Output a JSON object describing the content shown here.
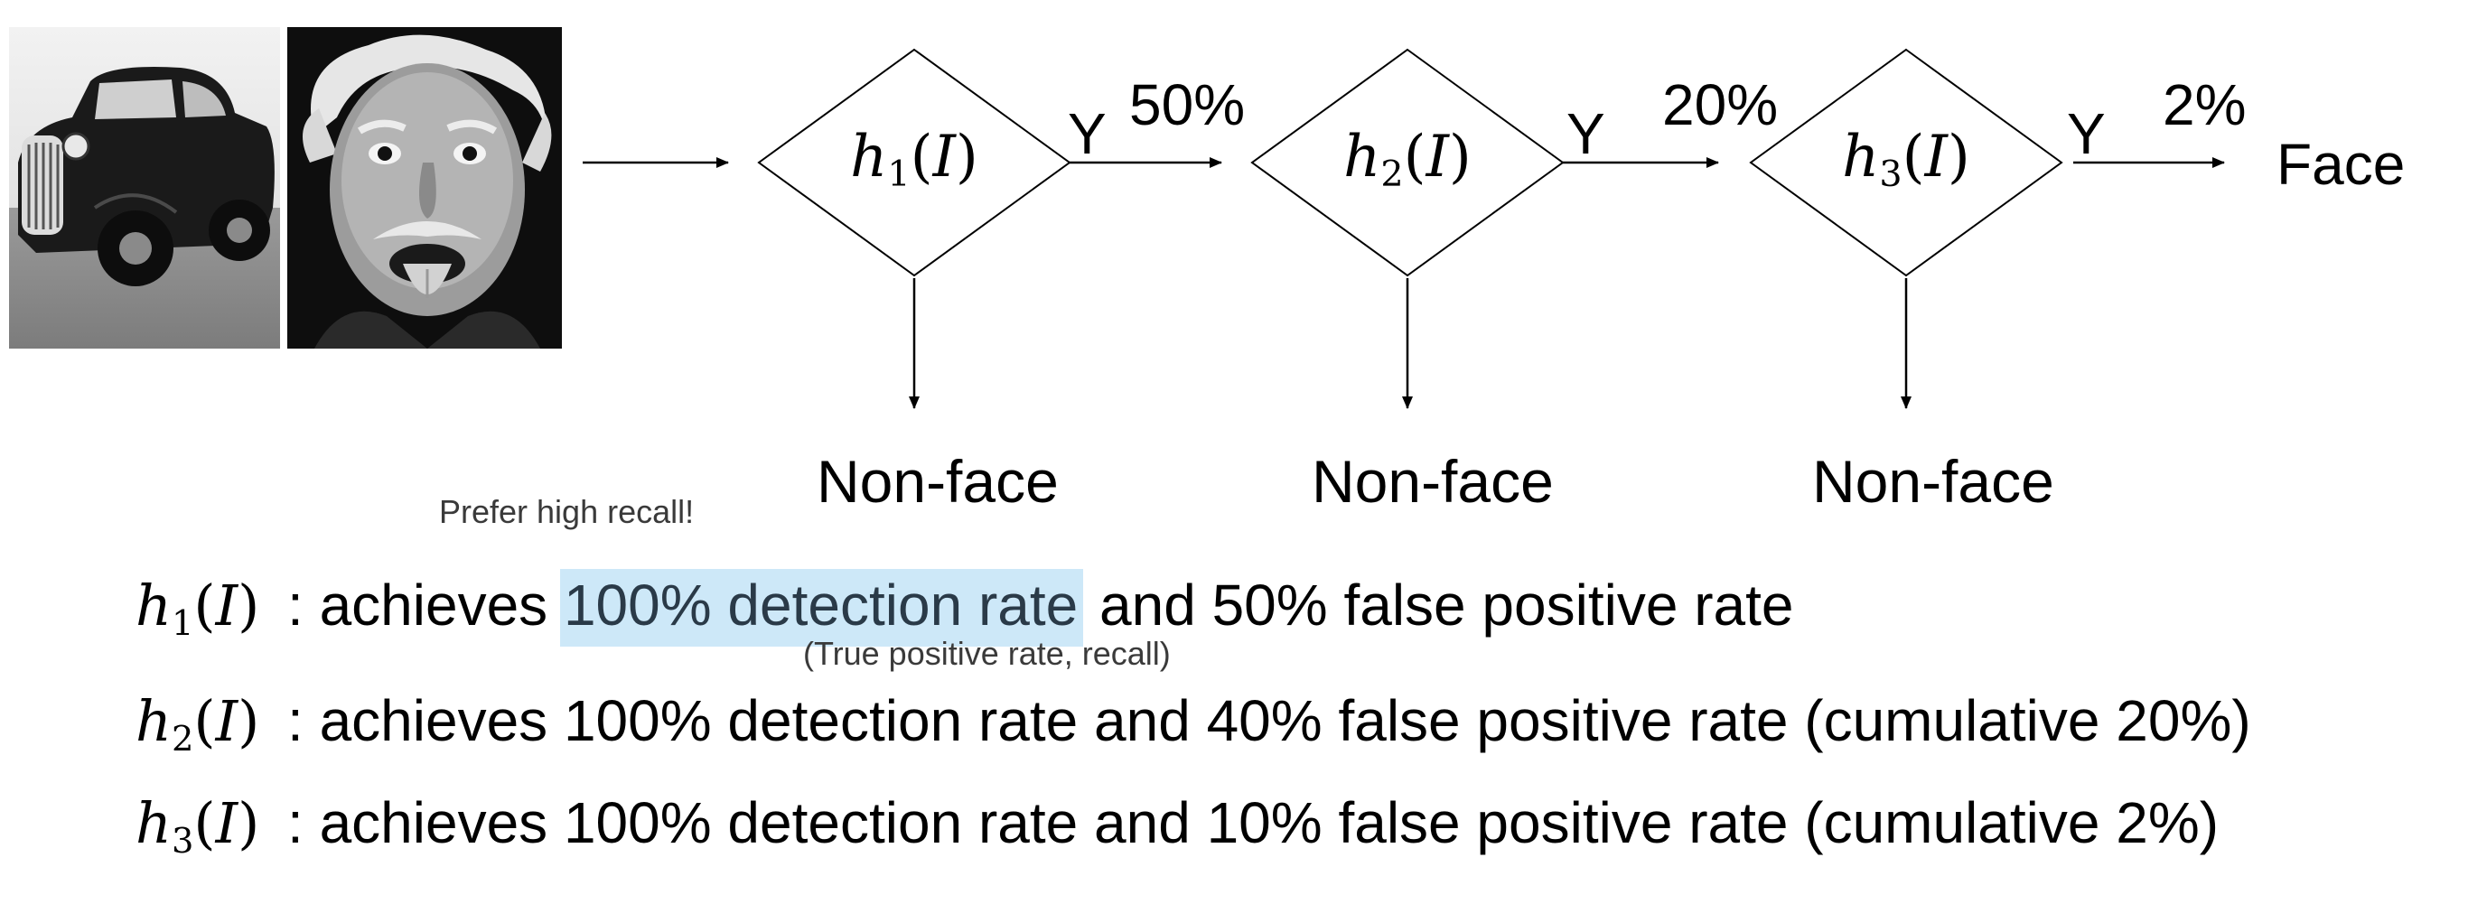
{
  "images": {
    "left": {
      "icon": "vintage-car-photo"
    },
    "right": {
      "icon": "einstein-tongue-photo"
    }
  },
  "stages": [
    {
      "classifier": {
        "fn": "h",
        "sub": "1",
        "arg": "I"
      },
      "yes": "Y",
      "pass_rate": "50%",
      "reject": "Non-face"
    },
    {
      "classifier": {
        "fn": "h",
        "sub": "2",
        "arg": "I"
      },
      "yes": "Y",
      "pass_rate": "20%",
      "reject": "Non-face"
    },
    {
      "classifier": {
        "fn": "h",
        "sub": "3",
        "arg": "I"
      },
      "yes": "Y",
      "pass_rate": "2%",
      "reject": "Non-face"
    }
  ],
  "output_label": "Face",
  "notes": {
    "prefer_recall": "Prefer high recall!",
    "detection_rate_gloss": "(True positive rate, recall)"
  },
  "descriptions": [
    {
      "classifier": {
        "fn": "h",
        "sub": "1",
        "arg": "I"
      },
      "prefix": ": achieves ",
      "highlight": "100% detection rate",
      "suffix": " and 50% false positive rate"
    },
    {
      "classifier": {
        "fn": "h",
        "sub": "2",
        "arg": "I"
      },
      "text": ": achieves 100% detection rate and 40% false positive rate (cumulative 20%)"
    },
    {
      "classifier": {
        "fn": "h",
        "sub": "3",
        "arg": "I"
      },
      "text": ": achieves 100% detection rate and 10% false positive rate (cumulative 2%)"
    }
  ],
  "colors": {
    "highlight_bg": "#cde8f8",
    "line": "#000000"
  }
}
